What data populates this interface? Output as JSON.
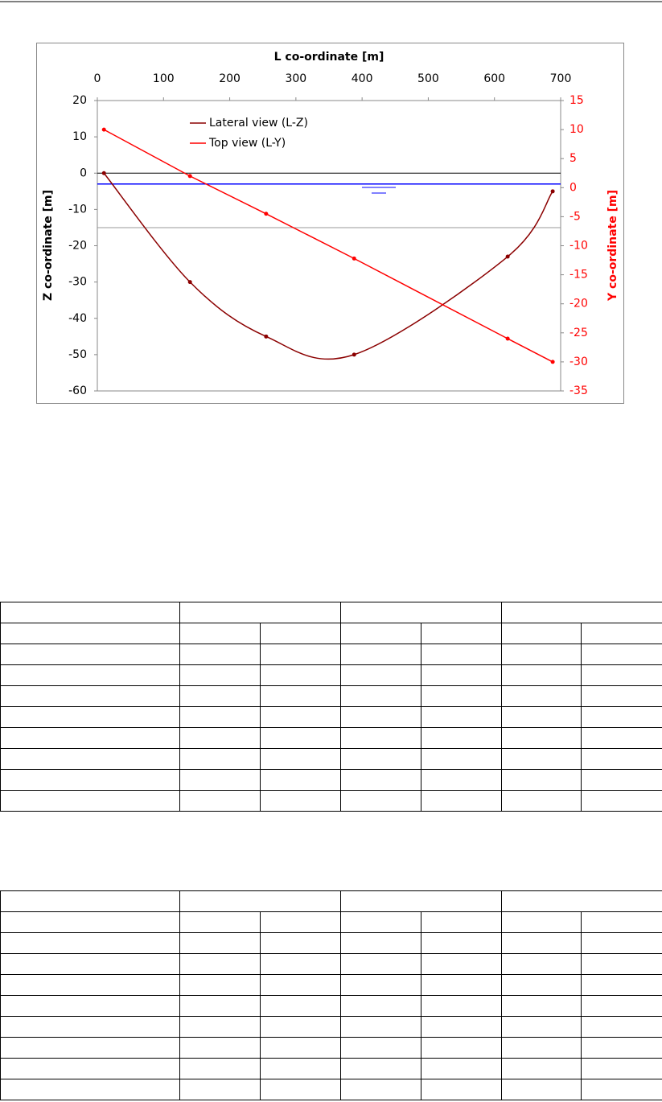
{
  "chart_data": {
    "type": "line",
    "xlabel": "L co-ordinate [m]",
    "ylabel": "Z co-ordinate [m]",
    "y2label": "Y co-ordinate [m]",
    "x": [
      10,
      140,
      255,
      388,
      620,
      688
    ],
    "series": [
      {
        "name": "Lateral view (L-Z)",
        "color": "#8b0000",
        "values": [
          0,
          -30,
          -45,
          -50,
          -23,
          -5
        ],
        "axis": "y",
        "smooth": true
      },
      {
        "name": "Top view (L-Y)",
        "color": "#ff0000",
        "values": [
          10,
          2,
          -4.5,
          -12.2,
          -26,
          -30
        ],
        "axis": "y2",
        "smooth": false
      }
    ],
    "xlim": [
      0,
      700
    ],
    "xticks": [
      0,
      100,
      200,
      300,
      400,
      500,
      600,
      700
    ],
    "ylim": [
      -60,
      20
    ],
    "yticks": [
      -60,
      -50,
      -40,
      -30,
      -20,
      -10,
      0,
      10,
      20
    ],
    "y2lim": [
      -35,
      15
    ],
    "y2ticks": [
      -35,
      -30,
      -25,
      -20,
      -15,
      -10,
      -5,
      0,
      5,
      10,
      15
    ],
    "y2color": "#ff0000",
    "hlines": [
      {
        "value": 0,
        "color": "#000000"
      },
      {
        "value": -3,
        "color": "#0000ff"
      },
      {
        "value": -15,
        "color": "#999999"
      }
    ],
    "legend": "upper left"
  }
}
